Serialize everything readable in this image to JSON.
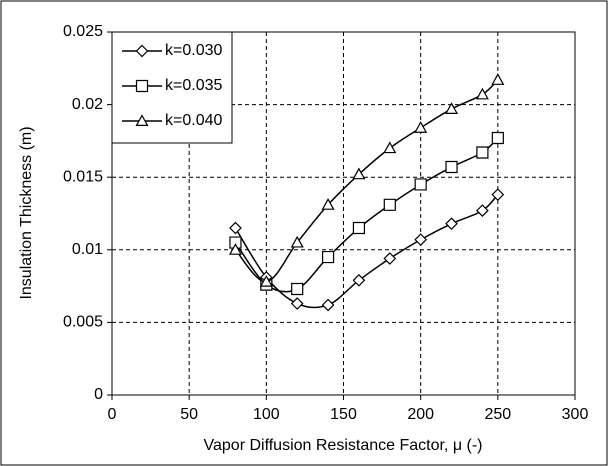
{
  "chart_data": {
    "type": "line",
    "x_label": "Vapor Diffusion Resistance Factor, μ (-)",
    "y_label": "Insulation Thickness  (m)",
    "xlim": [
      0,
      300
    ],
    "xticks": [
      0,
      50,
      100,
      150,
      200,
      250,
      300
    ],
    "ylim": [
      0,
      0.025
    ],
    "yticks": [
      0,
      0.005,
      0.01,
      0.015,
      0.02,
      0.025
    ],
    "grid": true,
    "legend": "upper left",
    "x": [
      80,
      100,
      120,
      140,
      160,
      180,
      200,
      220,
      240,
      250
    ],
    "series": [
      {
        "name": "k=0.030",
        "color": "#000000",
        "marker": "diamond",
        "values": [
          0.0115,
          0.0081,
          0.0063,
          0.0062,
          0.0079,
          0.0094,
          0.0107,
          0.0118,
          0.0127,
          0.0138
        ]
      },
      {
        "name": "k=0.035",
        "color": "#000000",
        "marker": "square",
        "values": [
          0.0105,
          0.0076,
          0.0073,
          0.0095,
          0.0115,
          0.0131,
          0.0145,
          0.0157,
          0.0167,
          0.0177
        ]
      },
      {
        "name": "k=0.040",
        "color": "#000000",
        "marker": "triangle",
        "values": [
          0.01,
          0.0078,
          0.0105,
          0.0131,
          0.0152,
          0.017,
          0.0184,
          0.0197,
          0.0207,
          0.0217
        ]
      }
    ]
  }
}
